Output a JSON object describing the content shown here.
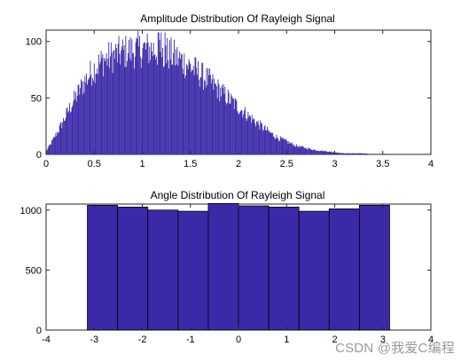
{
  "watermark": "CSDN @我爱C编程",
  "chart_data": [
    {
      "type": "bar",
      "title": "Amplitude Distribution Of Rayleigh Signal",
      "xlabel": "",
      "ylabel": "",
      "xlim": [
        0,
        4
      ],
      "ylim": [
        0,
        110
      ],
      "xticks": [
        0,
        0.5,
        1,
        1.5,
        2,
        2.5,
        3,
        3.5,
        4
      ],
      "xtick_labels": [
        "0",
        "0.5",
        "1",
        "1.5",
        "2",
        "2.5",
        "3",
        "3.5",
        "4"
      ],
      "yticks": [
        0,
        50,
        100
      ],
      "ytick_labels": [
        "0",
        "50",
        "100"
      ],
      "bar_color": "#3a2aa8",
      "bins_envelope": {
        "x": [
          0.0,
          0.05,
          0.1,
          0.15,
          0.2,
          0.25,
          0.3,
          0.35,
          0.4,
          0.45,
          0.5,
          0.6,
          0.7,
          0.8,
          0.9,
          1.0,
          1.1,
          1.2,
          1.3,
          1.4,
          1.5,
          1.6,
          1.7,
          1.8,
          1.9,
          2.0,
          2.1,
          2.2,
          2.3,
          2.4,
          2.5,
          2.6,
          2.7,
          2.8,
          2.9,
          3.0,
          3.1,
          3.2,
          3.3,
          3.4,
          3.5,
          3.6
        ],
        "y": [
          3,
          10,
          18,
          26,
          35,
          44,
          52,
          60,
          68,
          74,
          80,
          88,
          92,
          95,
          97,
          98,
          98,
          96,
          93,
          88,
          82,
          75,
          68,
          60,
          52,
          44,
          36,
          29,
          22,
          16,
          12,
          8,
          6,
          4,
          3,
          2,
          1,
          1,
          1,
          0,
          0,
          0
        ]
      }
    },
    {
      "type": "bar",
      "title": "Angle Distribution Of Rayleigh Signal",
      "xlabel": "",
      "ylabel": "",
      "xlim": [
        -4,
        4
      ],
      "ylim": [
        0,
        1050
      ],
      "xticks": [
        -4,
        -3,
        -2,
        -1,
        0,
        1,
        2,
        3,
        4
      ],
      "xtick_labels": [
        "-4",
        "-3",
        "-2",
        "-1",
        "0",
        "1",
        "2",
        "3",
        "4"
      ],
      "yticks": [
        0,
        500,
        1000
      ],
      "ytick_labels": [
        "0",
        "500",
        "1000"
      ],
      "bar_color": "#3a2aa8",
      "categories": [
        "-2.83",
        "-2.20",
        "-1.57",
        "-0.94",
        "-0.31",
        "0.31",
        "0.94",
        "1.57",
        "2.20",
        "2.83"
      ],
      "bin_edges": [
        -3.1416,
        -2.5133,
        -1.885,
        -1.2566,
        -0.6283,
        0.0,
        0.6283,
        1.2566,
        1.885,
        2.5133,
        3.1416
      ],
      "values": [
        1040,
        1025,
        1000,
        990,
        1055,
        1035,
        1025,
        990,
        1010,
        1040
      ]
    }
  ]
}
